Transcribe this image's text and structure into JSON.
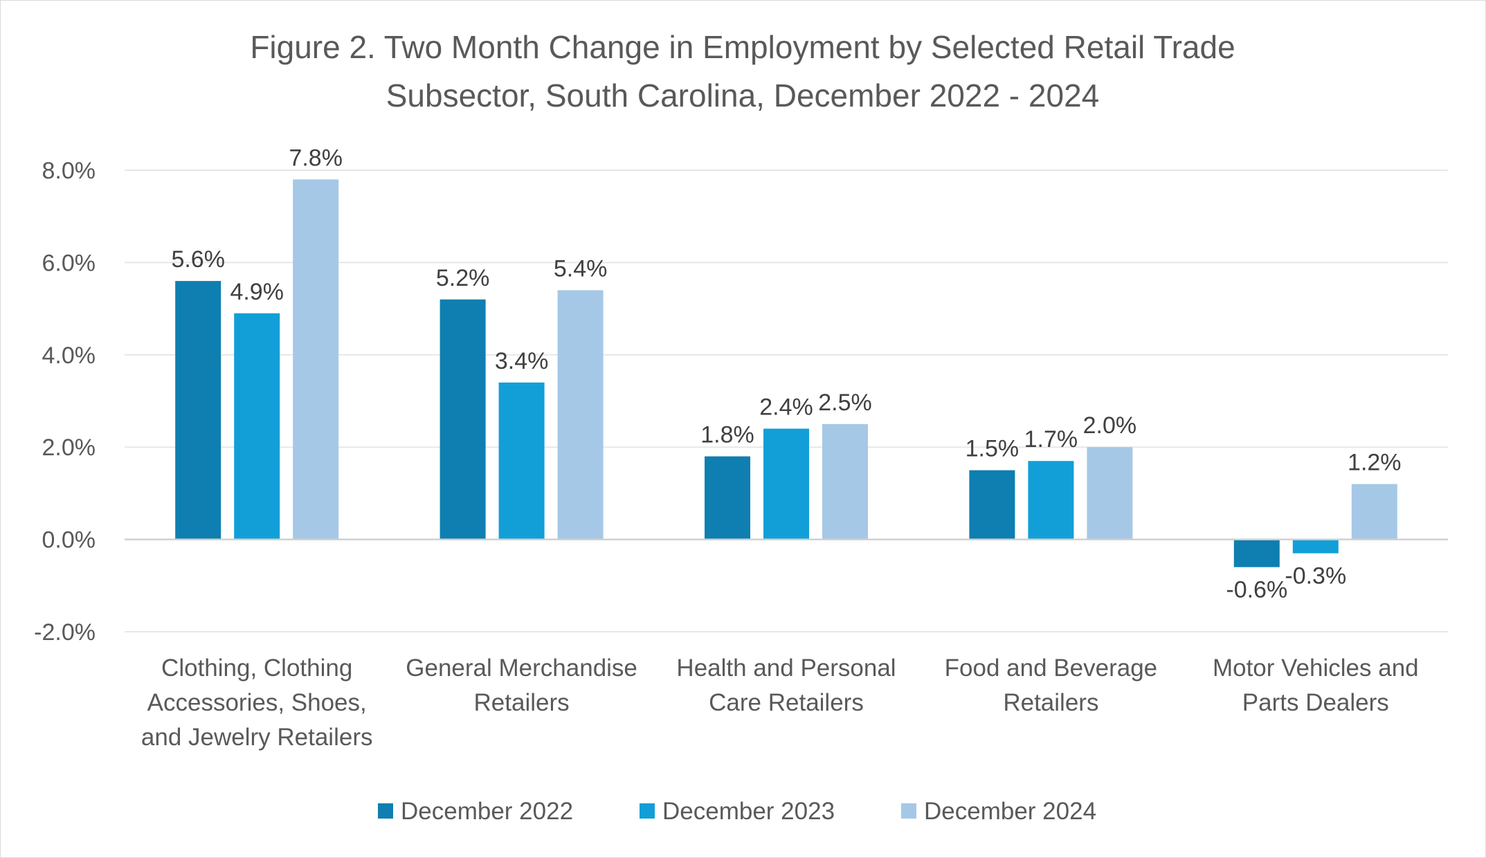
{
  "chart_data": {
    "type": "bar",
    "title": "Figure 2. Two Month Change in Employment by Selected Retail Trade Subsector, South Carolina, December 2022 - 2024",
    "title_lines": [
      "Figure 2. Two Month Change in Employment by Selected Retail Trade",
      "Subsector, South Carolina, December 2022 - 2024"
    ],
    "categories": [
      "Clothing, Clothing Accessories, Shoes, and Jewelry Retailers",
      "General Merchandise Retailers",
      "Health and Personal Care Retailers",
      "Food and Beverage Retailers",
      "Motor Vehicles and Parts Dealers"
    ],
    "category_lines": [
      [
        "Clothing, Clothing",
        "Accessories, Shoes,",
        "and Jewelry Retailers"
      ],
      [
        "General Merchandise",
        "Retailers"
      ],
      [
        "Health and Personal",
        "Care Retailers"
      ],
      [
        "Food and Beverage",
        "Retailers"
      ],
      [
        "Motor Vehicles and",
        "Parts Dealers"
      ]
    ],
    "series": [
      {
        "name": "December 2022",
        "color": "#0e7fb0",
        "values": [
          5.6,
          5.2,
          1.8,
          1.5,
          -0.6
        ],
        "labels": [
          "5.6%",
          "5.2%",
          "1.8%",
          "1.5%",
          "-0.6%"
        ]
      },
      {
        "name": "December 2023",
        "color": "#129fd8",
        "values": [
          4.9,
          3.4,
          2.4,
          1.7,
          -0.3
        ],
        "labels": [
          "4.9%",
          "3.4%",
          "2.4%",
          "1.7%",
          "-0.3%"
        ]
      },
      {
        "name": "December 2024",
        "color": "#a5c8e6",
        "values": [
          7.8,
          5.4,
          2.5,
          2.0,
          1.2
        ],
        "labels": [
          "7.8%",
          "5.4%",
          "2.5%",
          "2.0%",
          "1.2%"
        ]
      }
    ],
    "ylim": [
      -2.0,
      8.0
    ],
    "yticks": [
      -2.0,
      0.0,
      2.0,
      4.0,
      6.0,
      8.0
    ],
    "ytick_labels": [
      "-2.0%",
      "0.0%",
      "2.0%",
      "4.0%",
      "6.0%",
      "8.0%"
    ],
    "xlabel": "",
    "ylabel": "",
    "grid": true,
    "legend_position": "bottom"
  },
  "colors": {
    "gridline": "#e7e7e7",
    "zero_line": "#d0d0d0",
    "text": "#595959",
    "label_text": "#404040"
  }
}
